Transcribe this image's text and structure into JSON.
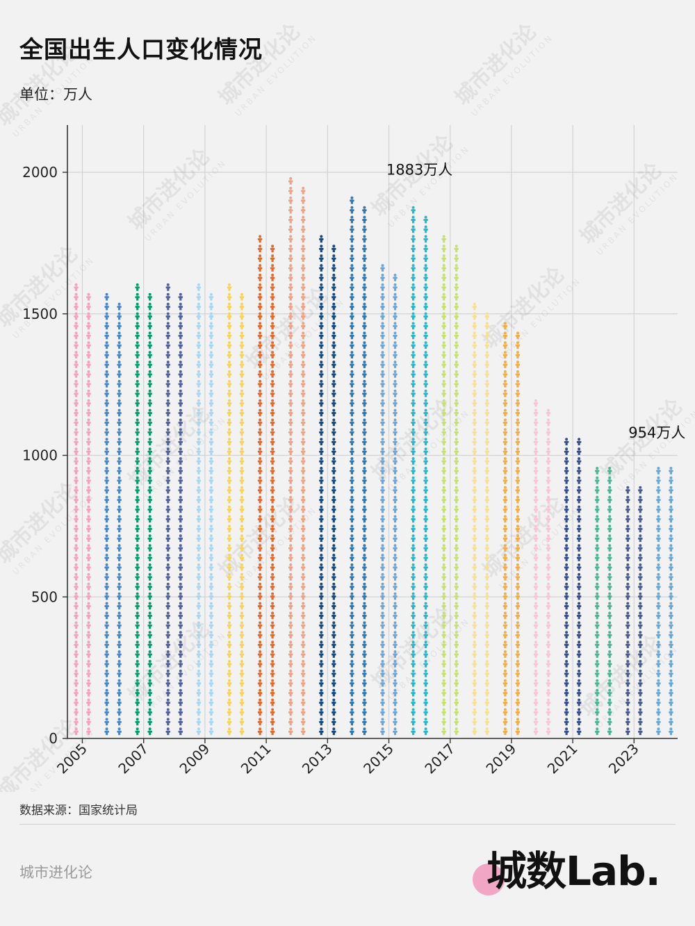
{
  "title": "全国出生人口变化情况",
  "unit_label": "单位：万人",
  "source_label": "数据来源：国家统计局",
  "footer_brand": "城市进化论",
  "logo_text": "城数Lab.",
  "watermark_text": "城市进化论",
  "watermark_sub": "URBAN EVOLUTION",
  "chart_data": {
    "type": "bar",
    "title": "全国出生人口变化情况",
    "xlabel": "",
    "ylabel": "",
    "ylim": [
      0,
      2000
    ],
    "yticks": [
      0,
      500,
      1000,
      1500,
      2000
    ],
    "grid": true,
    "legend": "none",
    "x_tick_labels": [
      "2005",
      "2007",
      "2009",
      "2011",
      "2013",
      "2015",
      "2017",
      "2019",
      "2021",
      "2023"
    ],
    "categories": [
      "2005",
      "2006",
      "2007",
      "2008",
      "2009",
      "2010",
      "2011",
      "2012",
      "2013",
      "2014",
      "2015",
      "2016",
      "2017",
      "2018",
      "2019",
      "2020",
      "2021",
      "2022",
      "2023",
      "2024"
    ],
    "values": [
      1617,
      1585,
      1595,
      1608,
      1591,
      1592,
      1785,
      1973,
      1776,
      1897,
      1655,
      1883,
      1765,
      1523,
      1465,
      1202,
      1062,
      956,
      902,
      954
    ],
    "colors": [
      "#f2a3bd",
      "#4c86c3",
      "#0a9a6e",
      "#50629a",
      "#a9d6f1",
      "#f6d35b",
      "#e26a2c",
      "#f0a284",
      "#134b85",
      "#2a79b8",
      "#6ea7d6",
      "#25bacb",
      "#c7e26a",
      "#f7e08f",
      "#f2ae45",
      "#f7c5d6",
      "#344f8c",
      "#4eb394",
      "#4a5c8e",
      "#6ca6d5"
    ],
    "annotations": [
      {
        "category": "2016",
        "text": "1883万人"
      },
      {
        "category": "2024",
        "text": "954万人"
      }
    ]
  }
}
